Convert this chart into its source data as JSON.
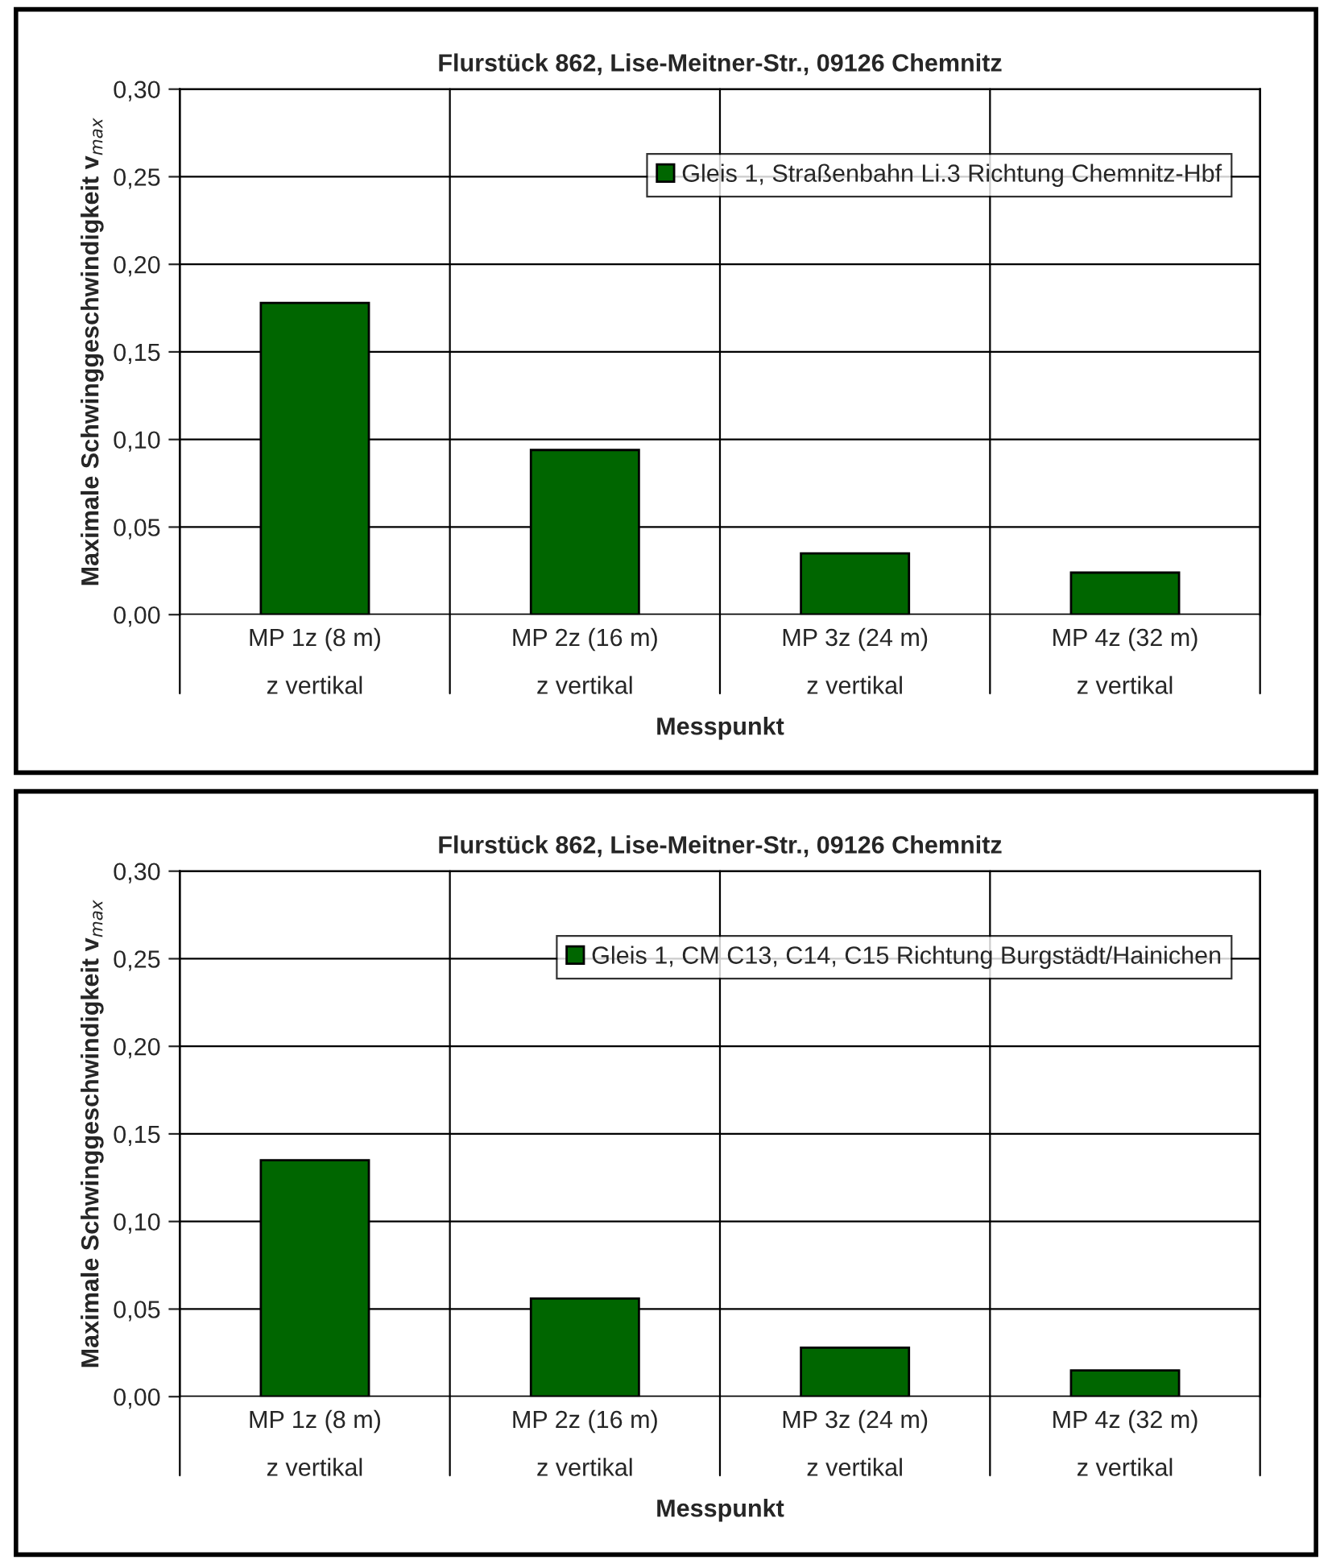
{
  "chart_data": [
    {
      "type": "bar",
      "title": "Flurstück 862, Lise-Meitner-Str., 09126 Chemnitz",
      "xlabel": "Messpunkt",
      "ylabel": "Maximale Schwinggeschwindigkeit v$_{max}$",
      "categories": [
        "MP 1z (8 m)\nz vertikal",
        "MP 2z (16 m)\nz vertikal",
        "MP 3z (24 m)\nz vertikal",
        "MP 4z (32 m)\nz vertikal"
      ],
      "series": [
        {
          "name": "Gleis 1, Straßenbahn Li.3 Richtung Chemnitz-Hbf",
          "color": "#006600",
          "values": [
            0.178,
            0.094,
            0.035,
            0.024
          ]
        }
      ],
      "ylim": [
        0,
        0.3
      ],
      "yticks": [
        {
          "value": 0,
          "label": "0,00"
        },
        {
          "value": 0.05,
          "label": "0,05"
        },
        {
          "value": 0.1,
          "label": "0,10"
        },
        {
          "value": 0.15,
          "label": "0,15"
        },
        {
          "value": 0.2,
          "label": "0,20"
        },
        {
          "value": 0.25,
          "label": "0,25"
        },
        {
          "value": 0.3,
          "label": "0,30"
        }
      ],
      "grid": true,
      "legend": "top right"
    },
    {
      "type": "bar",
      "title": "Flurstück 862, Lise-Meitner-Str., 09126 Chemnitz",
      "xlabel": "Messpunkt",
      "ylabel": "Maximale Schwinggeschwindigkeit v$_{max}$",
      "categories": [
        "MP 1z (8 m)\nz vertikal",
        "MP 2z (16 m)\nz vertikal",
        "MP 3z (24 m)\nz vertikal",
        "MP 4z (32 m)\nz vertikal"
      ],
      "series": [
        {
          "name": "Gleis 1, CM C13, C14, C15 Richtung Burgstädt/Hainichen",
          "color": "#006600",
          "values": [
            0.135,
            0.056,
            0.028,
            0.015
          ]
        }
      ],
      "ylim": [
        0,
        0.3
      ],
      "yticks": [
        {
          "value": 0,
          "label": "0,00"
        },
        {
          "value": 0.05,
          "label": "0,05"
        },
        {
          "value": 0.1,
          "label": "0,10"
        },
        {
          "value": 0.15,
          "label": "0,15"
        },
        {
          "value": 0.2,
          "label": "0,20"
        },
        {
          "value": 0.25,
          "label": "0,25"
        },
        {
          "value": 0.3,
          "label": "0,30"
        }
      ],
      "grid": true,
      "legend": "top right"
    }
  ]
}
